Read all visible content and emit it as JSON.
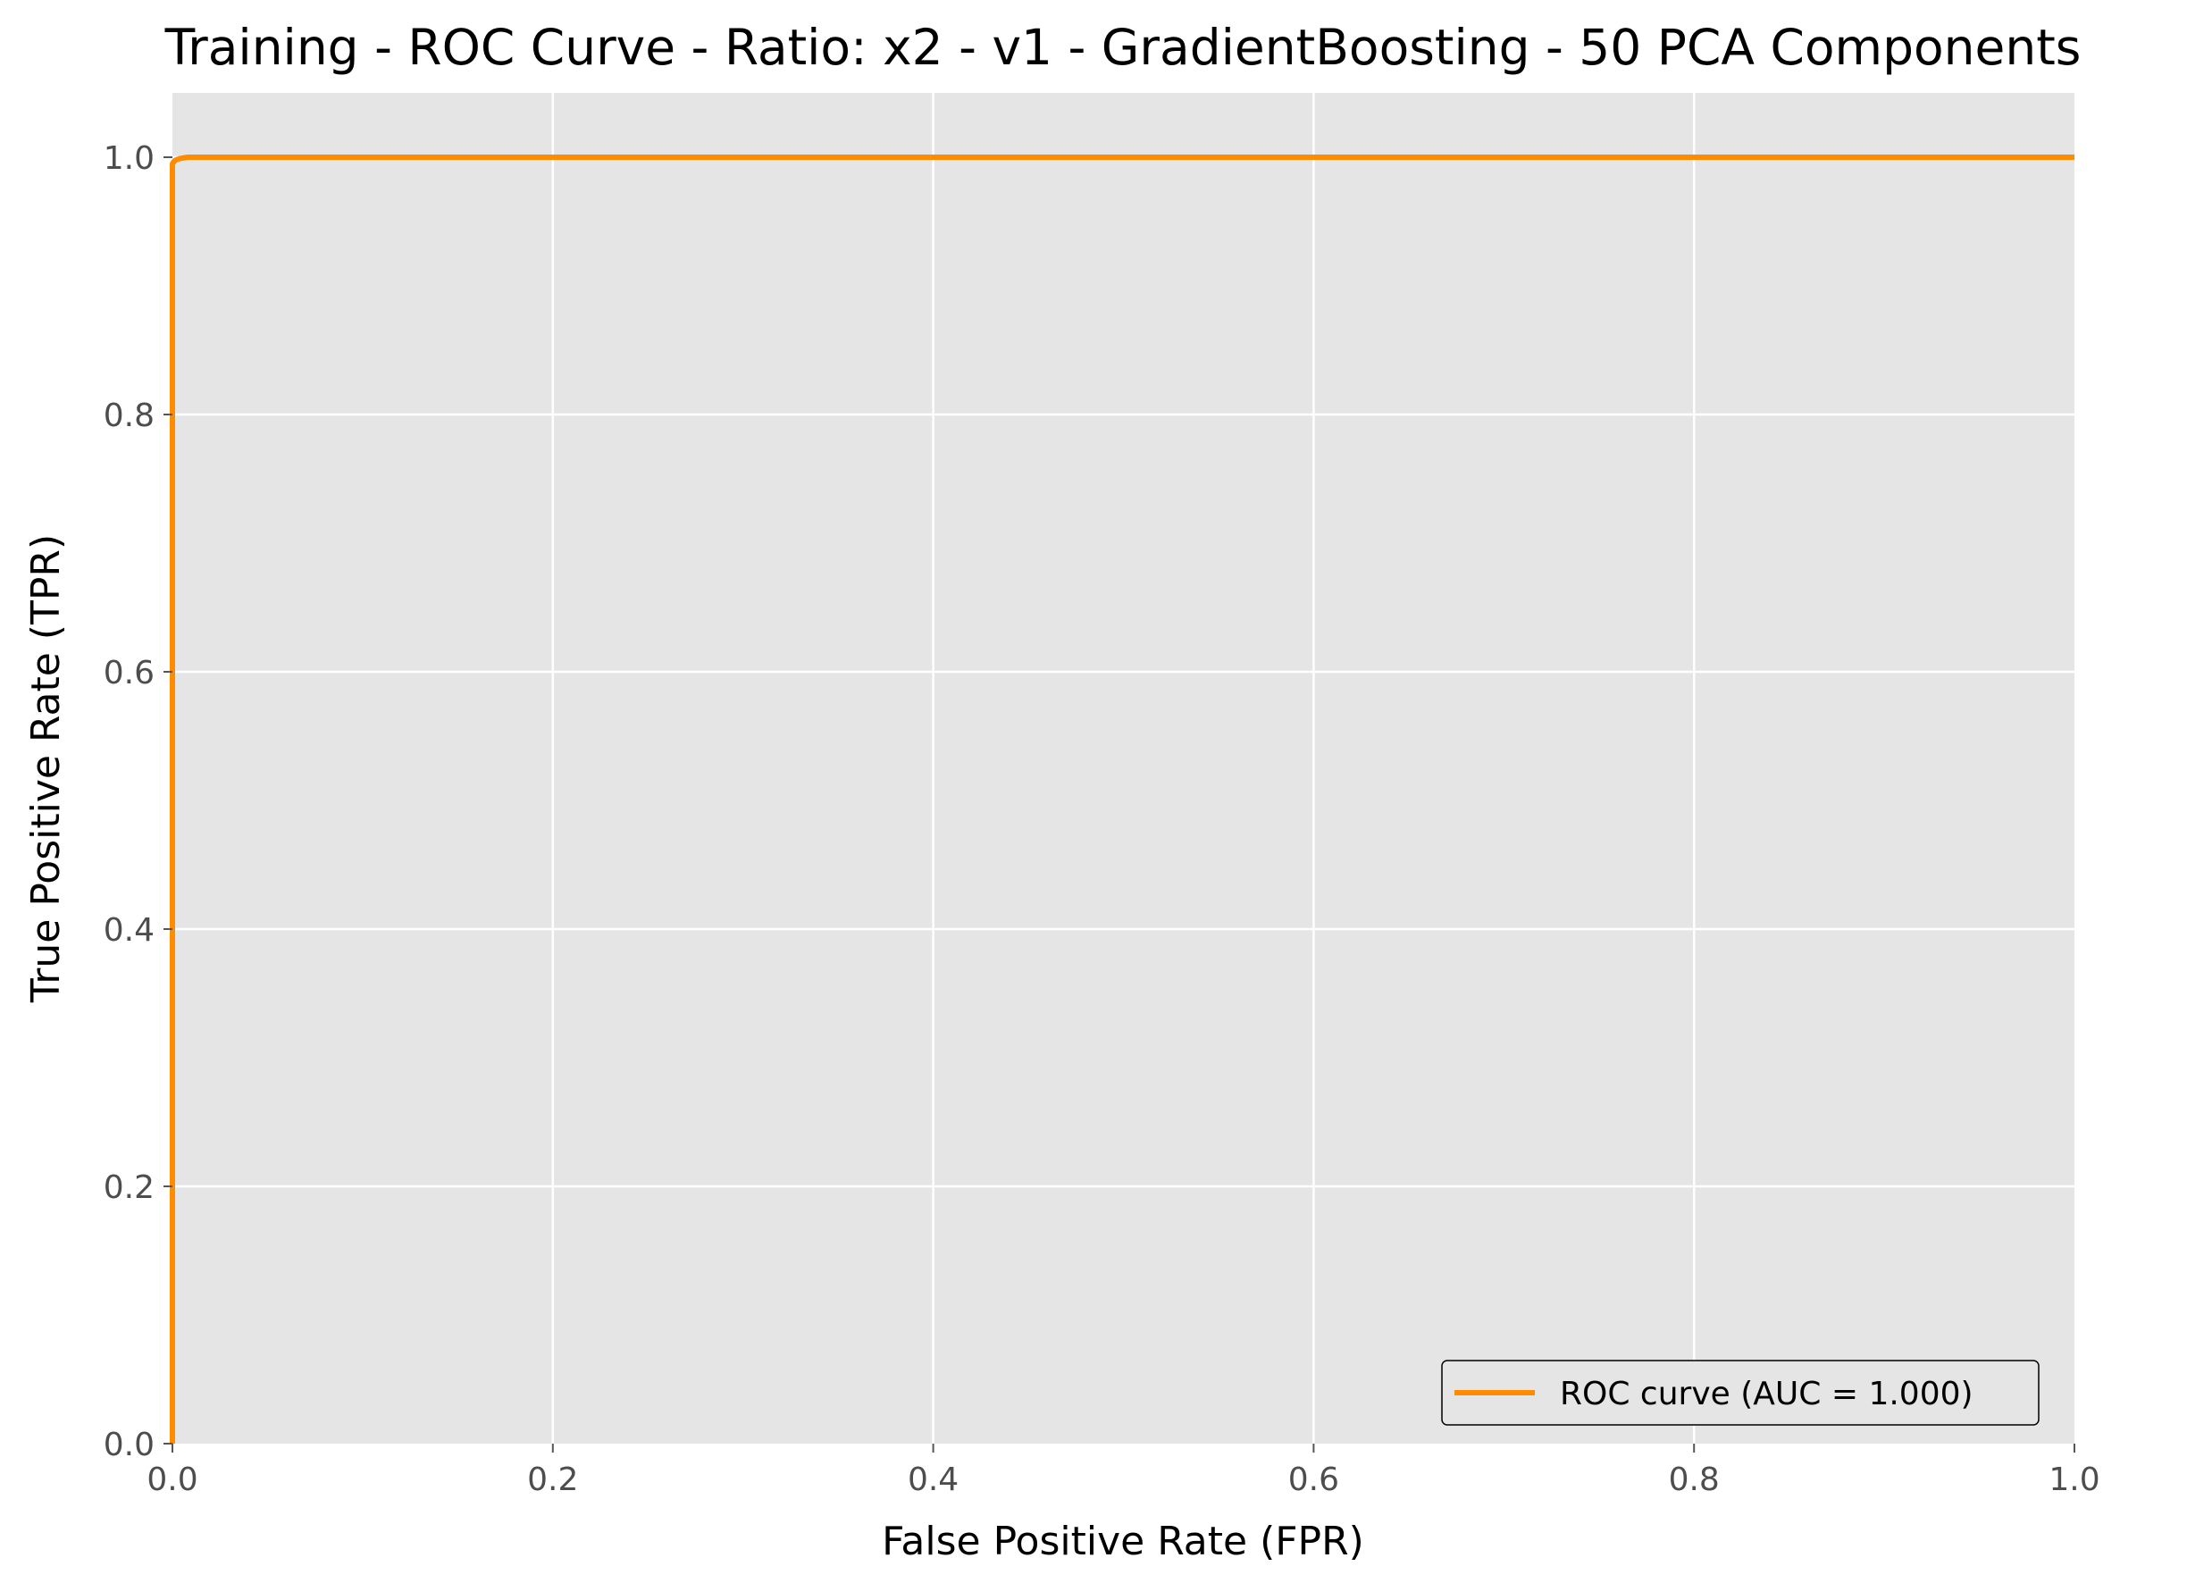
{
  "chart_data": {
    "type": "line",
    "title": "Training - ROC Curve - Ratio: x2 - v1 - GradientBoosting - 50 PCA Components",
    "xlabel": "False Positive Rate (FPR)",
    "ylabel": "True Positive Rate (TPR)",
    "xlim": [
      0.0,
      1.0
    ],
    "ylim": [
      0.0,
      1.05
    ],
    "xticks": [
      "0.0",
      "0.2",
      "0.4",
      "0.6",
      "0.8",
      "1.0"
    ],
    "yticks": [
      "0.0",
      "0.2",
      "0.4",
      "0.6",
      "0.8",
      "1.0"
    ],
    "xtick_values": [
      0.0,
      0.2,
      0.4,
      0.6,
      0.8,
      1.0
    ],
    "ytick_values": [
      0.0,
      0.2,
      0.4,
      0.6,
      0.8,
      1.0
    ],
    "grid": true,
    "legend_position": "lower-right",
    "background_color": "#e5e5e5",
    "series": [
      {
        "name": "ROC curve (AUC = 1.000)",
        "color": "#ff8c00",
        "x": [
          0.0,
          0.0,
          0.0,
          0.001,
          0.002,
          0.004,
          0.008,
          0.02,
          0.2,
          0.4,
          0.6,
          0.8,
          1.0
        ],
        "y": [
          0.0,
          0.8,
          0.995,
          0.997,
          0.998,
          0.999,
          1.0,
          1.0,
          1.0,
          1.0,
          1.0,
          1.0,
          1.0
        ]
      }
    ]
  }
}
